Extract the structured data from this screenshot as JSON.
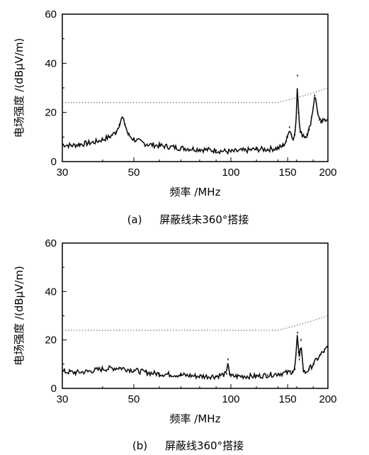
{
  "chart_data": [
    {
      "type": "line",
      "title": "",
      "caption_prefix": "(a)",
      "caption_text": "屏蔽线未360°搭接",
      "xlabel": "频率 /MHz",
      "ylabel": "电场强度 /(dBμV/m)",
      "x_scale": "log",
      "xlim": [
        30,
        200
      ],
      "ylim": [
        0,
        60
      ],
      "x_ticks": [
        30,
        50,
        100,
        150,
        200
      ],
      "y_ticks": [
        0,
        20,
        40,
        60
      ],
      "grid": false,
      "series": [
        {
          "style": "dotted-limit",
          "x": [
            30,
            40,
            50,
            60,
            80,
            100,
            120,
            140,
            150,
            160,
            170,
            180,
            190,
            200
          ],
          "y": [
            24,
            24,
            24,
            24,
            24,
            24,
            24,
            24,
            25,
            26,
            27,
            28,
            29,
            30
          ]
        },
        {
          "style": "measured",
          "x": [
            30,
            32,
            34,
            36,
            38,
            40,
            42,
            44,
            45,
            46,
            47,
            48,
            50,
            55,
            60,
            70,
            80,
            90,
            100,
            110,
            120,
            130,
            140,
            143,
            145,
            148,
            150,
            152,
            154,
            156,
            158,
            160,
            161,
            162,
            164,
            166,
            168,
            170,
            172,
            175,
            178,
            180,
            182,
            184,
            186,
            188,
            190,
            193,
            196,
            200
          ],
          "y": [
            7,
            6.5,
            7,
            7.5,
            8,
            9,
            10,
            12,
            15,
            18,
            15,
            11,
            9,
            7,
            6.5,
            5.5,
            5,
            4.5,
            4,
            4.5,
            5,
            5,
            5.5,
            6,
            6.5,
            8,
            10,
            14,
            11,
            9,
            11,
            22,
            35,
            20,
            12,
            11,
            11,
            10,
            11,
            13,
            18,
            22,
            27,
            24,
            20,
            17,
            16,
            16.5,
            17,
            18
          ]
        }
      ]
    },
    {
      "type": "line",
      "title": "",
      "caption_prefix": "(b)",
      "caption_text": "屏蔽线360°搭接",
      "xlabel": "频率 /MHz",
      "ylabel": "电场强度 /(dBμV/m)",
      "x_scale": "log",
      "xlim": [
        30,
        200
      ],
      "ylim": [
        0,
        60
      ],
      "x_ticks": [
        30,
        50,
        100,
        150,
        200
      ],
      "y_ticks": [
        0,
        20,
        40,
        60
      ],
      "grid": false,
      "series": [
        {
          "style": "dotted-limit",
          "x": [
            30,
            40,
            50,
            60,
            80,
            100,
            120,
            140,
            150,
            160,
            170,
            180,
            190,
            200
          ],
          "y": [
            24,
            24,
            24,
            24,
            24,
            24,
            24,
            24,
            25,
            26,
            27,
            28,
            29,
            30
          ]
        },
        {
          "style": "measured",
          "x": [
            30,
            33,
            36,
            40,
            45,
            50,
            55,
            60,
            70,
            80,
            90,
            97,
            98,
            99,
            100,
            110,
            120,
            130,
            140,
            150,
            155,
            158,
            160,
            161,
            162,
            163,
            164,
            165,
            166,
            168,
            170,
            175,
            180,
            185,
            190,
            195,
            200
          ],
          "y": [
            7,
            6.5,
            7,
            8,
            8.5,
            7.5,
            6.5,
            6,
            5.5,
            5,
            5,
            6,
            12,
            6,
            5,
            5,
            5,
            5.5,
            6,
            6.5,
            7,
            8,
            18,
            23,
            15,
            12,
            16,
            20,
            14,
            7,
            6.5,
            8,
            10,
            12,
            14,
            15.5,
            17
          ]
        }
      ]
    }
  ]
}
